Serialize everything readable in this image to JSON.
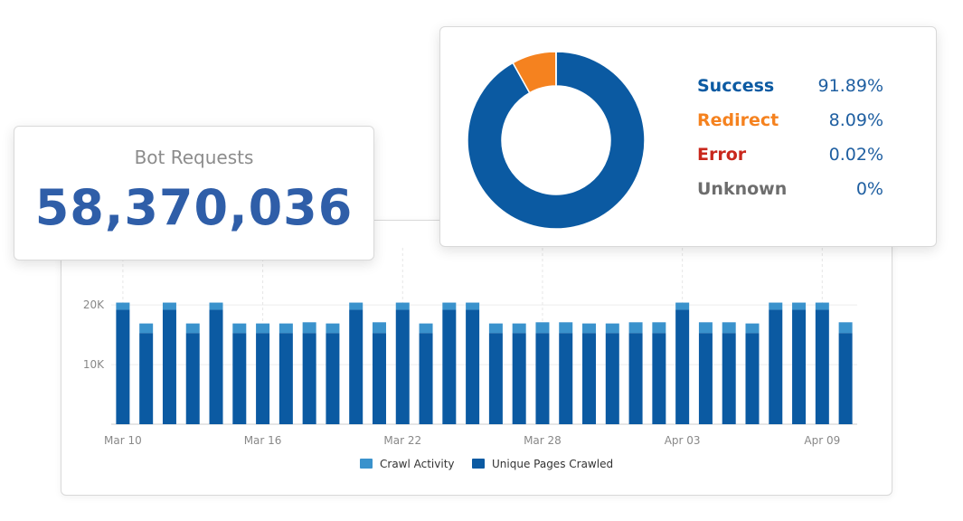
{
  "bot_requests": {
    "title": "Bot Requests",
    "value": "58,370,036"
  },
  "status_breakdown": {
    "items": [
      {
        "label": "Success",
        "value": "91.89%",
        "percent": 91.89,
        "color": "#0b5aa2"
      },
      {
        "label": "Redirect",
        "value": "8.09%",
        "percent": 8.09,
        "color": "#f5821f"
      },
      {
        "label": "Error",
        "value": "0.02%",
        "percent": 0.02,
        "color": "#c9271c"
      },
      {
        "label": "Unknown",
        "value": "0%",
        "percent": 0,
        "color": "#6d6d6d"
      }
    ]
  },
  "chart_data": [
    {
      "type": "pie",
      "labels": [
        "Success",
        "Redirect",
        "Error",
        "Unknown"
      ],
      "values": [
        91.89,
        8.09,
        0.02,
        0
      ],
      "colors": [
        "#0b5aa2",
        "#f5821f",
        "#c9271c",
        "#6d6d6d"
      ],
      "legend": "right"
    },
    {
      "type": "bar",
      "stacked": true,
      "yticks": [
        "10K",
        "20K"
      ],
      "ylim": [
        0,
        22000
      ],
      "xticks": [
        "Mar 10",
        "Mar 16",
        "Mar 22",
        "Mar 28",
        "Apr 03",
        "Apr 09"
      ],
      "categories": [
        "Mar 10",
        "Mar 11",
        "Mar 12",
        "Mar 13",
        "Mar 14",
        "Mar 15",
        "Mar 16",
        "Mar 17",
        "Mar 18",
        "Mar 19",
        "Mar 20",
        "Mar 21",
        "Mar 22",
        "Mar 23",
        "Mar 24",
        "Mar 25",
        "Mar 26",
        "Mar 27",
        "Mar 28",
        "Mar 29",
        "Mar 30",
        "Mar 31",
        "Apr 01",
        "Apr 02",
        "Apr 03",
        "Apr 04",
        "Apr 05",
        "Apr 06",
        "Apr 07",
        "Apr 08",
        "Apr 09",
        "Apr 10"
      ],
      "grid": true,
      "legend": "bottom",
      "series": [
        {
          "name": "Unique Pages Crawled",
          "color": "#0b5aa2",
          "values": [
            19200,
            15300,
            19200,
            15300,
            19200,
            15300,
            15300,
            15300,
            15300,
            15300,
            19200,
            15300,
            19200,
            15300,
            19200,
            19200,
            15300,
            15300,
            15300,
            15300,
            15300,
            15300,
            15300,
            15300,
            19200,
            15300,
            15300,
            15300,
            19200,
            19200,
            19200,
            15300
          ]
        },
        {
          "name": "Crawl Activity",
          "color": "#3a92cc",
          "values": [
            1200,
            1600,
            1200,
            1600,
            1200,
            1600,
            1600,
            1600,
            1800,
            1600,
            1200,
            1800,
            1200,
            1600,
            1200,
            1200,
            1600,
            1600,
            1800,
            1800,
            1600,
            1600,
            1800,
            1800,
            1200,
            1800,
            1800,
            1600,
            1200,
            1200,
            1200,
            1800
          ]
        }
      ]
    }
  ]
}
